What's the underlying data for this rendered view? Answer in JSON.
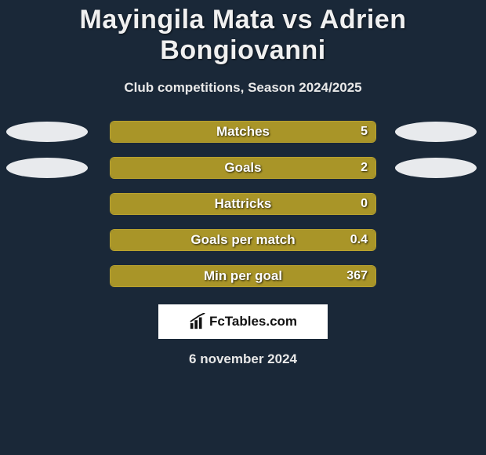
{
  "title": "Mayingila Mata vs Adrien Bongiovanni",
  "subtitle": "Club competitions, Season 2024/2025",
  "date": "6 november 2024",
  "brand": {
    "label": "FcTables.com"
  },
  "colors": {
    "bar_fill": "#a99528",
    "bar_border": "#b9a22e",
    "pill": "#e8eaed",
    "background": "#1a2838"
  },
  "stats": [
    {
      "label": "Matches",
      "value": "5",
      "left_has_pill": true,
      "right_has_pill": true,
      "fill_pct": 100
    },
    {
      "label": "Goals",
      "value": "2",
      "left_has_pill": true,
      "right_has_pill": true,
      "fill_pct": 100
    },
    {
      "label": "Hattricks",
      "value": "0",
      "left_has_pill": false,
      "right_has_pill": false,
      "fill_pct": 100
    },
    {
      "label": "Goals per match",
      "value": "0.4",
      "left_has_pill": false,
      "right_has_pill": false,
      "fill_pct": 100
    },
    {
      "label": "Min per goal",
      "value": "367",
      "left_has_pill": false,
      "right_has_pill": false,
      "fill_pct": 100
    }
  ]
}
